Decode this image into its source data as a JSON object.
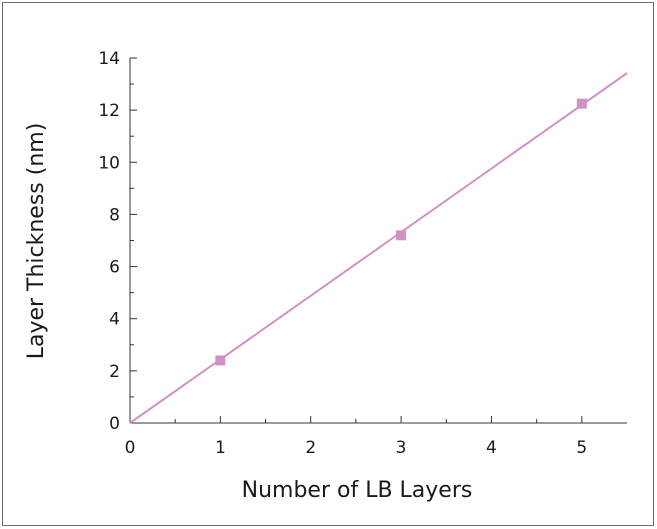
{
  "chart_data": {
    "type": "scatter",
    "title": "",
    "xlabel": "Number of LB Layers",
    "ylabel": "Layer Thickness (nm)",
    "xlim": [
      0,
      5.5
    ],
    "ylim": [
      0,
      14
    ],
    "x_ticks": [
      "0",
      "1",
      "2",
      "3",
      "4",
      "5"
    ],
    "y_ticks": [
      "0",
      "2",
      "4",
      "6",
      "8",
      "10",
      "12",
      "14"
    ],
    "series": [
      {
        "x": [
          1,
          3,
          5
        ],
        "y": [
          2.4,
          7.2,
          12.25
        ],
        "marker": "square",
        "color": "#d291c6"
      }
    ],
    "fit_line": {
      "slope": 2.44,
      "intercept": 0,
      "color": "#d291c6"
    },
    "grid": false,
    "legend": "none"
  }
}
